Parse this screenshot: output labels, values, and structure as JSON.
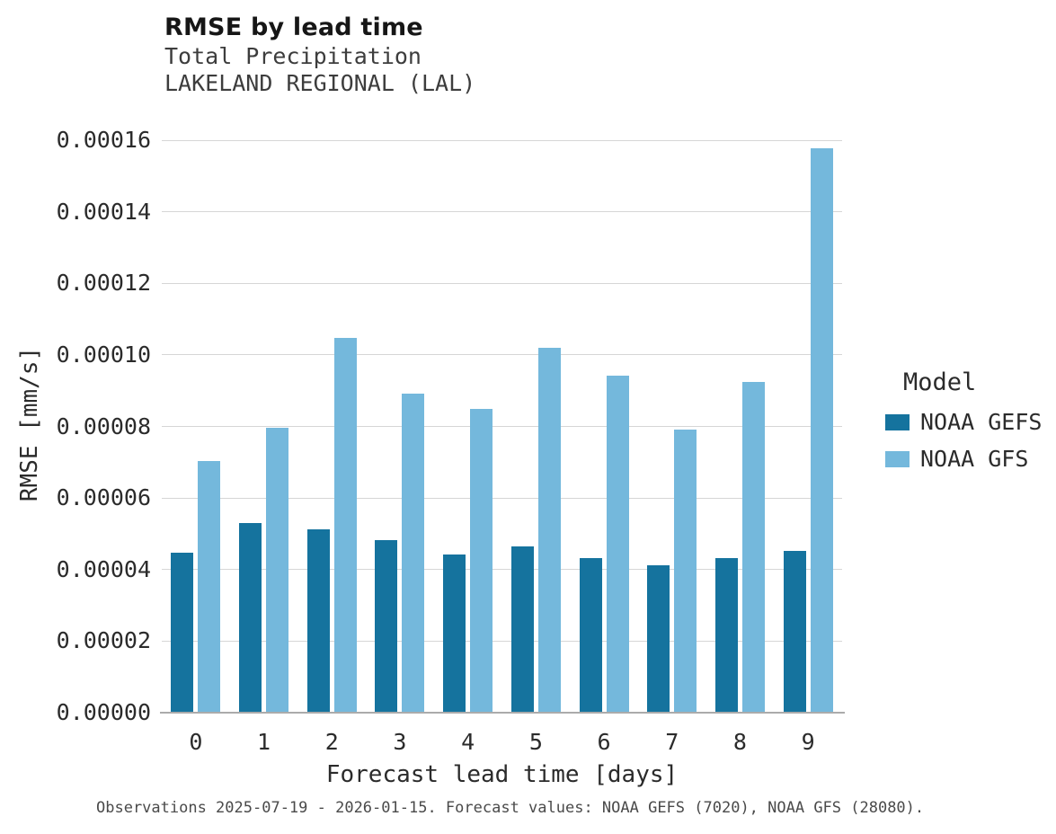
{
  "header": {
    "title": "RMSE by lead time",
    "subtitle1": "Total Precipitation",
    "subtitle2": "LAKELAND REGIONAL (LAL)"
  },
  "caption": "Observations 2025-07-19 - 2026-01-15. Forecast values: NOAA GEFS (7020), NOAA GFS (28080).",
  "legend": {
    "title": "Model",
    "entries": [
      {
        "label": "NOAA GEFS",
        "color": "#15739e"
      },
      {
        "label": "NOAA GFS",
        "color": "#74b8dc"
      }
    ]
  },
  "chart_data": {
    "type": "bar",
    "title": "RMSE by lead time",
    "subtitle": "Total Precipitation — LAKELAND REGIONAL (LAL)",
    "xlabel": "Forecast lead time [days]",
    "ylabel": "RMSE [mm/s]",
    "categories": [
      "0",
      "1",
      "2",
      "3",
      "4",
      "5",
      "6",
      "7",
      "8",
      "9"
    ],
    "series": [
      {
        "name": "NOAA GEFS",
        "color": "#15739e",
        "values": [
          4.47e-05,
          5.3e-05,
          5.13e-05,
          4.83e-05,
          4.43e-05,
          4.65e-05,
          4.31e-05,
          4.12e-05,
          4.31e-05,
          4.53e-05
        ]
      },
      {
        "name": "NOAA GFS",
        "color": "#74b8dc",
        "values": [
          7.03e-05,
          7.97e-05,
          0.0001048,
          8.92e-05,
          8.49e-05,
          0.0001021,
          9.41e-05,
          7.9e-05,
          9.24e-05,
          0.0001578
        ]
      }
    ],
    "ylim": [
      0,
      0.00016
    ],
    "ytick_step": 2e-05,
    "ytick_labels": [
      "0.00000",
      "0.00002",
      "0.00004",
      "0.00006",
      "0.00008",
      "0.00010",
      "0.00012",
      "0.00014",
      "0.00016"
    ],
    "grid": true,
    "legend_position": "right"
  }
}
